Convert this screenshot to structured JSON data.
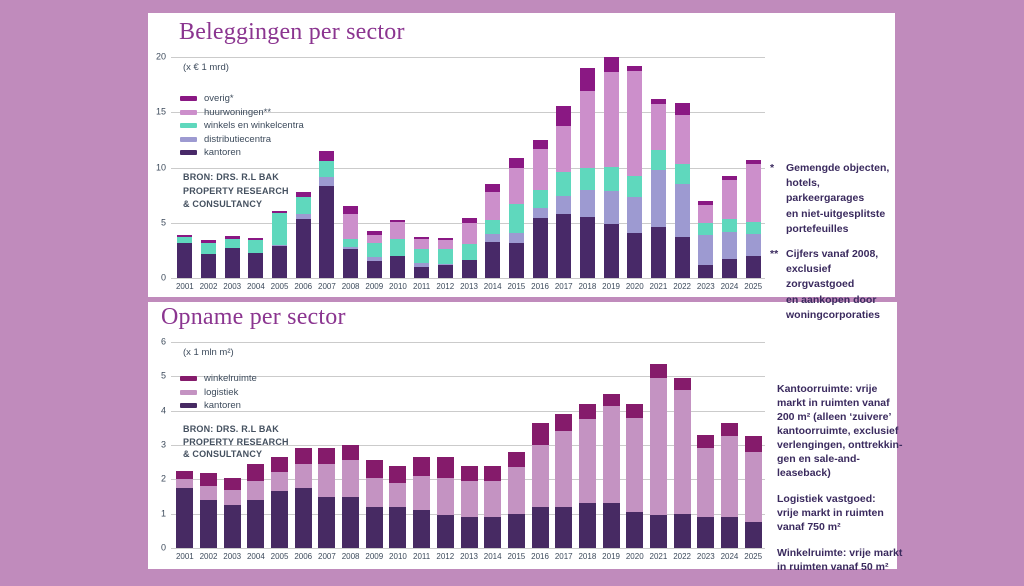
{
  "background_color": "#c08bbc",
  "panel_color": "#ffffff",
  "title_color": "#8b3590",
  "axis_text_color": "#3d4b5c",
  "note_text_color": "#3a2a5e",
  "grid_color": "#cbcbcb",
  "chart_data": [
    {
      "type": "bar",
      "stacked": true,
      "title": "Beleggingen per sector",
      "unit_label": "(x € 1 mrd)",
      "source": "BRON: DRS. R.L BAK\nPROPERTY RESEARCH\n& CONSULTANCY",
      "ylim": [
        0,
        20
      ],
      "y_ticks": [
        20,
        15,
        10,
        5,
        0
      ],
      "grid": true,
      "legend_position": "upper-left",
      "categories": [
        "2001",
        "2002",
        "2003",
        "2004",
        "2005",
        "2006",
        "2007",
        "2008",
        "2009",
        "2010",
        "2011",
        "2012",
        "2013",
        "2014",
        "2015",
        "2016",
        "2017",
        "2018",
        "2019",
        "2020",
        "2021",
        "2022",
        "2023",
        "2024",
        "2025"
      ],
      "legend": [
        {
          "label": "overig*",
          "color": "#8a1883"
        },
        {
          "label": "huurwoningen**",
          "color": "#cc8fcb"
        },
        {
          "label": "winkels en winkelcentra",
          "color": "#5fd8bd"
        },
        {
          "label": "distributiecentra",
          "color": "#9d9ad1"
        },
        {
          "label": "kantoren",
          "color": "#482968"
        }
      ],
      "series": [
        {
          "name": "kantoren",
          "color": "#482968",
          "values": [
            3.2,
            2.2,
            2.7,
            2.25,
            2.9,
            5.3,
            8.35,
            2.6,
            1.5,
            1.95,
            1.0,
            1.2,
            1.6,
            3.25,
            3.2,
            5.4,
            5.75,
            5.5,
            4.85,
            4.1,
            4.6,
            3.7,
            1.2,
            1.7,
            2.0
          ]
        },
        {
          "name": "distributiecentra",
          "color": "#9d9ad1",
          "values": [
            0,
            0,
            0,
            0,
            0.1,
            0.45,
            0.75,
            0.2,
            0.4,
            0,
            0.35,
            0.1,
            0,
            0.7,
            0.9,
            0.9,
            1.7,
            2.5,
            3.0,
            3.2,
            5.2,
            4.85,
            2.65,
            2.5,
            2.0
          ]
        },
        {
          "name": "winkels-en-winkelcentra",
          "color": "#5fd8bd",
          "values": [
            0.5,
            1.0,
            0.85,
            1.15,
            2.9,
            1.6,
            1.5,
            0.7,
            1.25,
            1.6,
            1.3,
            1.3,
            1.45,
            1.3,
            2.6,
            1.7,
            2.1,
            2.0,
            2.2,
            1.9,
            1.75,
            1.8,
            1.1,
            1.1,
            1.05
          ]
        },
        {
          "name": "huurwoningen",
          "color": "#cc8fcb",
          "values": [
            0,
            0,
            0,
            0,
            0,
            0,
            0,
            2.3,
            0.7,
            1.5,
            0.9,
            0.8,
            1.9,
            2.5,
            3.3,
            3.7,
            4.2,
            6.9,
            8.6,
            9.5,
            4.2,
            4.4,
            1.7,
            3.6,
            5.25
          ]
        },
        {
          "name": "overig",
          "color": "#8a1883",
          "values": [
            0.2,
            0.2,
            0.25,
            0.2,
            0.2,
            0.45,
            0.9,
            0.7,
            0.45,
            0.2,
            0.2,
            0.2,
            0.5,
            0.75,
            0.9,
            0.8,
            1.8,
            2.1,
            1.4,
            0.5,
            0.45,
            1.05,
            0.3,
            0.3,
            0.4
          ]
        }
      ]
    },
    {
      "type": "bar",
      "stacked": true,
      "title": "Opname per sector",
      "unit_label": "(x 1 mln m²)",
      "source": "BRON: DRS. R.L BAK\nPROPERTY RESEARCH\n& CONSULTANCY",
      "ylim": [
        0,
        6
      ],
      "y_ticks": [
        6,
        5,
        4,
        3,
        2,
        1,
        0
      ],
      "grid": true,
      "legend_position": "upper-left",
      "categories": [
        "2001",
        "2002",
        "2003",
        "2004",
        "2005",
        "2006",
        "2007",
        "2008",
        "2009",
        "2010",
        "2011",
        "2012",
        "2013",
        "2014",
        "2015",
        "2016",
        "2017",
        "2018",
        "2019",
        "2020",
        "2021",
        "2022",
        "2023",
        "2024",
        "2025"
      ],
      "legend": [
        {
          "label": "winkelruimte",
          "color": "#851b6b"
        },
        {
          "label": "logistiek",
          "color": "#c493c2"
        },
        {
          "label": "kantoren",
          "color": "#472a63"
        }
      ],
      "series": [
        {
          "name": "kantoren",
          "color": "#472a63",
          "values": [
            1.75,
            1.4,
            1.25,
            1.4,
            1.65,
            1.75,
            1.5,
            1.5,
            1.2,
            1.2,
            1.1,
            0.95,
            0.9,
            0.9,
            1.0,
            1.2,
            1.2,
            1.3,
            1.3,
            1.05,
            0.95,
            1.0,
            0.9,
            0.9,
            0.75
          ]
        },
        {
          "name": "logistiek",
          "color": "#c493c2",
          "values": [
            0.25,
            0.4,
            0.45,
            0.55,
            0.55,
            0.7,
            0.95,
            1.05,
            0.85,
            0.7,
            1.0,
            1.1,
            1.05,
            1.05,
            1.35,
            1.8,
            2.2,
            2.45,
            2.85,
            2.75,
            4.0,
            3.6,
            2.0,
            2.35,
            2.05
          ]
        },
        {
          "name": "winkelruimte",
          "color": "#851b6b",
          "values": [
            0.25,
            0.4,
            0.35,
            0.5,
            0.45,
            0.45,
            0.45,
            0.45,
            0.5,
            0.5,
            0.55,
            0.6,
            0.45,
            0.45,
            0.45,
            0.65,
            0.5,
            0.45,
            0.35,
            0.4,
            0.4,
            0.35,
            0.4,
            0.4,
            0.45
          ]
        }
      ]
    }
  ],
  "annotations": {
    "beleggingen_notes": [
      {
        "marker": "*",
        "text": "Gemengde objecten,\nhotels, parkeergarages\nen niet-uitgesplitste\nportefeuilles"
      },
      {
        "marker": "**",
        "text": "Cijfers vanaf 2008,\nexclusief zorgvastgoed\nen aankopen door\nwoningcorporaties"
      }
    ],
    "opname_notes": [
      {
        "text": "Kantoorruimte: vrije\nmarkt in ruimten vanaf\n200 m² (alleen ‘zuivere’\nkantoorruimte, exclusief\nverlengingen, onttrekkin-\ngen en sale-and-leaseback)"
      },
      {
        "text": "Logistiek vastgoed:\nvrije markt in ruimten\nvanaf 750 m²"
      },
      {
        "text": "Winkelruimte: vrije markt\nin ruimten vanaf 50 m²"
      }
    ]
  }
}
